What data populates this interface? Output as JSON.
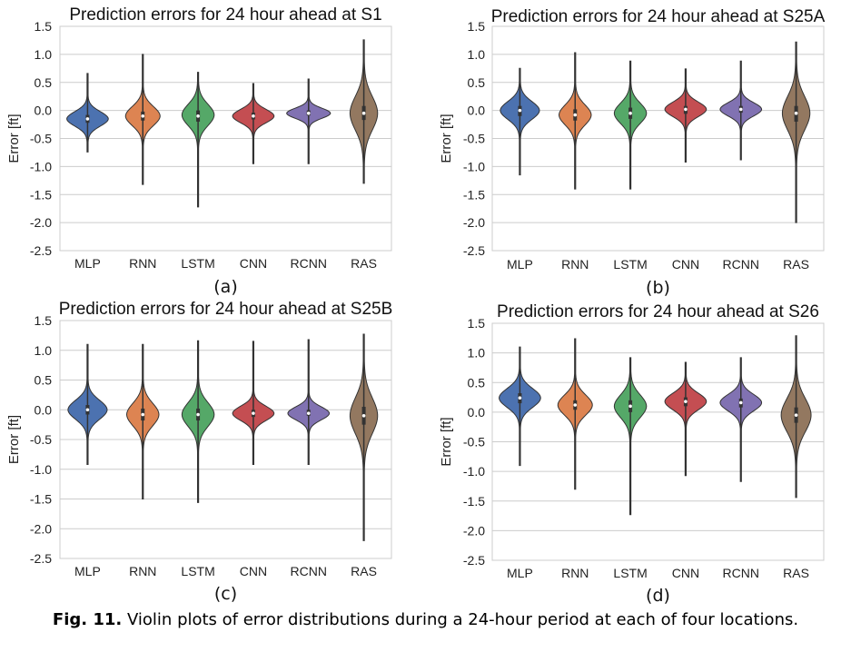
{
  "caption": {
    "label": "Fig. 11.",
    "text": "Violin plots of error distributions during a 24-hour period at each of four locations."
  },
  "colors": {
    "MLP": "#4c72b0",
    "RNN": "#dd8452",
    "LSTM": "#55a868",
    "CNN": "#c44e52",
    "RCNN": "#8172b2",
    "RAS": "#937860",
    "grid": "#cccccc",
    "frame": "#cccccc",
    "outline": "#333333"
  },
  "chart_data": [
    {
      "type": "violin",
      "title": "Prediction errors for 24 hour ahead at S1",
      "panel_label": "(a)",
      "ylabel": "Error [ft]",
      "ylim": [
        -2.5,
        1.5
      ],
      "yticks": [
        1.5,
        1.0,
        0.5,
        0.0,
        -0.5,
        -1.0,
        -1.5,
        -2.0,
        -2.5
      ],
      "ytick_labels": [
        "1.5",
        "1.0",
        "0.5",
        "0.0",
        "-0.5",
        "-1.0",
        "-1.5",
        "-2.0",
        "-2.5"
      ],
      "grid": true,
      "categories": [
        "MLP",
        "RNN",
        "LSTM",
        "CNN",
        "RCNN",
        "RAS"
      ],
      "series": [
        {
          "category": "MLP",
          "min": -0.74,
          "max": 0.66,
          "q1": -0.22,
          "median": -0.15,
          "q3": -0.08,
          "center": -0.15,
          "spread": 0.13,
          "peak": 0.85,
          "tail": 1.0
        },
        {
          "category": "RNN",
          "min": -1.32,
          "max": 1.0,
          "q1": -0.18,
          "median": -0.1,
          "q3": -0.02,
          "center": -0.1,
          "spread": 0.17,
          "peak": 0.7,
          "tail": 1.0
        },
        {
          "category": "LSTM",
          "min": -1.72,
          "max": 0.68,
          "q1": -0.2,
          "median": -0.1,
          "q3": 0.0,
          "center": -0.08,
          "spread": 0.19,
          "peak": 0.65,
          "tail": 1.0
        },
        {
          "category": "CNN",
          "min": -0.95,
          "max": 0.48,
          "q1": -0.16,
          "median": -0.1,
          "q3": -0.04,
          "center": -0.1,
          "spread": 0.12,
          "peak": 0.85,
          "tail": 1.0
        },
        {
          "category": "RCNN",
          "min": -0.95,
          "max": 0.56,
          "q1": -0.09,
          "median": -0.05,
          "q3": 0.0,
          "center": -0.05,
          "spread": 0.09,
          "peak": 0.9,
          "tail": 1.0
        },
        {
          "category": "RAS",
          "min": -1.3,
          "max": 1.26,
          "q1": -0.17,
          "median": -0.05,
          "q3": 0.08,
          "center": -0.05,
          "spread": 0.3,
          "peak": 0.55,
          "tail": 1.0
        }
      ]
    },
    {
      "type": "violin",
      "title": "Prediction errors for 24 hour ahead at S25A",
      "panel_label": "(b)",
      "ylabel": "Error [ft]",
      "ylim": [
        -2.5,
        1.5
      ],
      "yticks": [
        1.5,
        1.0,
        0.5,
        0.0,
        -0.5,
        -1.0,
        -1.5,
        -2.0,
        -2.5
      ],
      "ytick_labels": [
        "1.5",
        "1.0",
        "0.5",
        "0.0",
        "-0.5",
        "-1.0",
        "-1.5",
        "-2.0",
        "-2.5"
      ],
      "grid": true,
      "categories": [
        "MLP",
        "RNN",
        "LSTM",
        "CNN",
        "RCNN",
        "RAS"
      ],
      "series": [
        {
          "category": "MLP",
          "min": -1.15,
          "max": 0.75,
          "q1": -0.1,
          "median": 0.0,
          "q3": 0.08,
          "center": 0.0,
          "spread": 0.16,
          "peak": 0.8,
          "tail": 1.0
        },
        {
          "category": "RNN",
          "min": -1.4,
          "max": 1.03,
          "q1": -0.18,
          "median": -0.08,
          "q3": 0.02,
          "center": -0.08,
          "spread": 0.18,
          "peak": 0.65,
          "tail": 1.0
        },
        {
          "category": "LSTM",
          "min": -1.4,
          "max": 0.88,
          "q1": -0.15,
          "median": -0.05,
          "q3": 0.05,
          "center": -0.05,
          "spread": 0.18,
          "peak": 0.65,
          "tail": 1.0
        },
        {
          "category": "CNN",
          "min": -0.92,
          "max": 0.74,
          "q1": -0.06,
          "median": 0.02,
          "q3": 0.08,
          "center": 0.02,
          "spread": 0.13,
          "peak": 0.85,
          "tail": 1.0
        },
        {
          "category": "RCNN",
          "min": -0.88,
          "max": 0.88,
          "q1": -0.04,
          "median": 0.02,
          "q3": 0.08,
          "center": 0.02,
          "spread": 0.12,
          "peak": 0.85,
          "tail": 1.0
        },
        {
          "category": "RAS",
          "min": -2.0,
          "max": 1.22,
          "q1": -0.2,
          "median": -0.05,
          "q3": 0.08,
          "center": -0.05,
          "spread": 0.3,
          "peak": 0.55,
          "tail": 1.0
        }
      ]
    },
    {
      "type": "violin",
      "title": "Prediction errors for 24 hour ahead at S25B",
      "panel_label": "(c)",
      "ylabel": "Error [ft]",
      "ylim": [
        -2.5,
        1.5
      ],
      "yticks": [
        1.5,
        1.0,
        0.5,
        0.0,
        -0.5,
        -1.0,
        -1.5,
        -2.0,
        -2.5
      ],
      "ytick_labels": [
        "1.5",
        "1.0",
        "0.5",
        "0.0",
        "-0.5",
        "-1.0",
        "-1.5",
        "-2.0",
        "-2.5"
      ],
      "grid": true,
      "categories": [
        "MLP",
        "RNN",
        "LSTM",
        "CNN",
        "RCNN",
        "RAS"
      ],
      "series": [
        {
          "category": "MLP",
          "min": -0.92,
          "max": 1.1,
          "q1": -0.08,
          "median": 0.0,
          "q3": 0.08,
          "center": 0.0,
          "spread": 0.16,
          "peak": 0.8,
          "tail": 1.0
        },
        {
          "category": "RNN",
          "min": -1.5,
          "max": 1.1,
          "q1": -0.18,
          "median": -0.08,
          "q3": 0.02,
          "center": -0.08,
          "spread": 0.19,
          "peak": 0.65,
          "tail": 1.0
        },
        {
          "category": "LSTM",
          "min": -1.56,
          "max": 1.16,
          "q1": -0.18,
          "median": -0.08,
          "q3": 0.02,
          "center": -0.08,
          "spread": 0.2,
          "peak": 0.65,
          "tail": 1.0
        },
        {
          "category": "CNN",
          "min": -0.92,
          "max": 1.15,
          "q1": -0.12,
          "median": -0.06,
          "q3": 0.0,
          "center": -0.06,
          "spread": 0.12,
          "peak": 0.85,
          "tail": 1.0
        },
        {
          "category": "RCNN",
          "min": -0.92,
          "max": 1.18,
          "q1": -0.1,
          "median": -0.06,
          "q3": 0.0,
          "center": -0.06,
          "spread": 0.11,
          "peak": 0.85,
          "tail": 1.0
        },
        {
          "category": "RAS",
          "min": -2.2,
          "max": 1.27,
          "q1": -0.25,
          "median": -0.1,
          "q3": 0.05,
          "center": -0.1,
          "spread": 0.3,
          "peak": 0.55,
          "tail": 1.0
        }
      ]
    },
    {
      "type": "violin",
      "title": "Prediction errors for 24 hour ahead at S26",
      "panel_label": "(d)",
      "ylabel": "Error [ft]",
      "ylim": [
        -2.5,
        1.5
      ],
      "yticks": [
        1.5,
        1.0,
        0.5,
        0.0,
        -0.5,
        -1.0,
        -1.5,
        -2.0,
        -2.5
      ],
      "ytick_labels": [
        "1.5",
        "1.0",
        "0.5",
        "0.0",
        "-0.5",
        "-1.0",
        "-1.5",
        "-2.0",
        "-2.5"
      ],
      "grid": true,
      "categories": [
        "MLP",
        "RNN",
        "LSTM",
        "CNN",
        "RCNN",
        "RAS"
      ],
      "series": [
        {
          "category": "MLP",
          "min": -0.9,
          "max": 1.1,
          "q1": 0.15,
          "median": 0.24,
          "q3": 0.32,
          "center": 0.24,
          "spread": 0.16,
          "peak": 0.85,
          "tail": 1.0
        },
        {
          "category": "RNN",
          "min": -1.3,
          "max": 1.24,
          "q1": 0.04,
          "median": 0.12,
          "q3": 0.2,
          "center": 0.12,
          "spread": 0.17,
          "peak": 0.7,
          "tail": 1.0
        },
        {
          "category": "LSTM",
          "min": -1.73,
          "max": 0.92,
          "q1": 0.0,
          "median": 0.1,
          "q3": 0.2,
          "center": 0.1,
          "spread": 0.19,
          "peak": 0.65,
          "tail": 1.0
        },
        {
          "category": "CNN",
          "min": -1.07,
          "max": 0.84,
          "q1": 0.1,
          "median": 0.18,
          "q3": 0.25,
          "center": 0.18,
          "spread": 0.14,
          "peak": 0.85,
          "tail": 1.0
        },
        {
          "category": "RCNN",
          "min": -1.17,
          "max": 0.92,
          "q1": 0.08,
          "median": 0.16,
          "q3": 0.23,
          "center": 0.16,
          "spread": 0.14,
          "peak": 0.85,
          "tail": 1.0
        },
        {
          "category": "RAS",
          "min": -1.44,
          "max": 1.29,
          "q1": -0.18,
          "median": -0.05,
          "q3": 0.08,
          "center": -0.05,
          "spread": 0.28,
          "peak": 0.6,
          "tail": 1.0
        }
      ]
    }
  ]
}
